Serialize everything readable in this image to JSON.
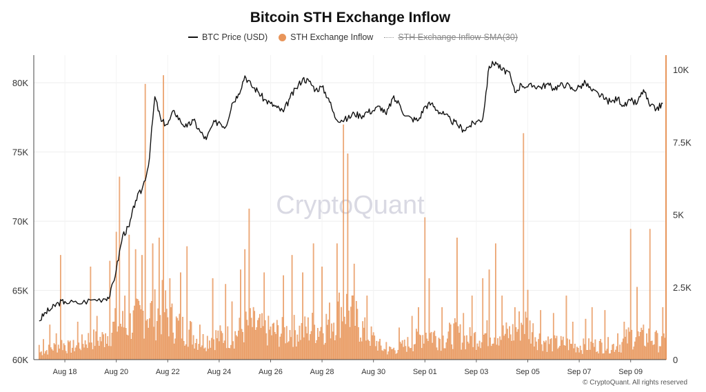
{
  "chart_data": {
    "type": "bar",
    "title": "Bitcoin STH Exchange Inflow",
    "watermark": "CryptoQuant",
    "legend_placement": "top-center",
    "legend": [
      {
        "label": "BTC Price (USD)",
        "style": "line",
        "color": "#111111"
      },
      {
        "label": "STH Exchange Inflow",
        "style": "dot",
        "color": "#e8955a"
      },
      {
        "label": "STH Exchange Inflow-SMA(30)",
        "style": "dotted",
        "disabled": true,
        "color": "#999999"
      }
    ],
    "x_tick_labels": [
      "Aug 18",
      "Aug 20",
      "Aug 22",
      "Aug 24",
      "Aug 26",
      "Aug 28",
      "Aug 30",
      "Sep 01",
      "Sep 03",
      "Sep 05",
      "Sep 07",
      "Sep 09"
    ],
    "x_range_days": [
      16.75,
      9.75
    ],
    "y_left": {
      "label": "BTC Price (USD)",
      "range": [
        60000,
        82000
      ],
      "ticks": [
        60000,
        65000,
        70000,
        75000,
        80000
      ],
      "tick_labels": [
        "60K",
        "65K",
        "70K",
        "75K",
        "80K"
      ]
    },
    "y_right": {
      "label": "STH Exchange Inflow",
      "range": [
        0,
        10500
      ],
      "ticks": [
        0,
        2500,
        5000,
        7500,
        10000
      ],
      "tick_labels": [
        "0",
        "2.5K",
        "5K",
        "7.5K",
        "10K"
      ]
    },
    "grid": true,
    "series": [
      {
        "name": "BTC Price (USD)",
        "type": "line",
        "color": "#111111",
        "points": [
          [
            "Aug 17 00:00",
            62800
          ],
          [
            "Aug 17 06:00",
            63400
          ],
          [
            "Aug 17 12:00",
            63700
          ],
          [
            "Aug 17 18:00",
            64100
          ],
          [
            "Aug 18 00:00",
            64200
          ],
          [
            "Aug 18 12:00",
            64050
          ],
          [
            "Aug 19 00:00",
            64300
          ],
          [
            "Aug 19 12:00",
            64400
          ],
          [
            "Aug 19 18:00",
            64600
          ],
          [
            "Aug 20 00:00",
            66500
          ],
          [
            "Aug 20 06:00",
            69000
          ],
          [
            "Aug 20 12:00",
            69600
          ],
          [
            "Aug 20 18:00",
            71500
          ],
          [
            "Aug 21 00:00",
            72300
          ],
          [
            "Aug 21 06:00",
            74000
          ],
          [
            "Aug 21 12:00",
            79000
          ],
          [
            "Aug 21 18:00",
            77200
          ],
          [
            "Aug 22 00:00",
            77000
          ],
          [
            "Aug 22 06:00",
            78000
          ],
          [
            "Aug 22 12:00",
            77200
          ],
          [
            "Aug 22 18:00",
            76800
          ],
          [
            "Aug 23 00:00",
            77300
          ],
          [
            "Aug 23 06:00",
            76500
          ],
          [
            "Aug 23 12:00",
            75900
          ],
          [
            "Aug 23 18:00",
            77000
          ],
          [
            "Aug 24 00:00",
            77200
          ],
          [
            "Aug 24 06:00",
            76800
          ],
          [
            "Aug 24 12:00",
            78500
          ],
          [
            "Aug 24 18:00",
            79200
          ],
          [
            "Aug 25 00:00",
            80500
          ],
          [
            "Aug 25 06:00",
            79800
          ],
          [
            "Aug 25 12:00",
            79400
          ],
          [
            "Aug 25 18:00",
            78800
          ],
          [
            "Aug 26 00:00",
            78500
          ],
          [
            "Aug 26 06:00",
            78200
          ],
          [
            "Aug 26 12:00",
            77900
          ],
          [
            "Aug 26 18:00",
            78900
          ],
          [
            "Aug 27 00:00",
            79600
          ],
          [
            "Aug 27 06:00",
            80300
          ],
          [
            "Aug 27 12:00",
            80100
          ],
          [
            "Aug 27 18:00",
            79500
          ],
          [
            "Aug 28 00:00",
            79700
          ],
          [
            "Aug 28 06:00",
            78900
          ],
          [
            "Aug 28 12:00",
            77500
          ],
          [
            "Aug 28 18:00",
            77300
          ],
          [
            "Aug 29 00:00",
            77400
          ],
          [
            "Aug 29 06:00",
            77800
          ],
          [
            "Aug 29 12:00",
            77600
          ],
          [
            "Aug 29 18:00",
            77900
          ],
          [
            "Aug 30 00:00",
            78000
          ],
          [
            "Aug 30 06:00",
            78300
          ],
          [
            "Aug 30 12:00",
            77700
          ],
          [
            "Aug 30 18:00",
            78900
          ],
          [
            "Aug 31 00:00",
            78500
          ],
          [
            "Aug 31 06:00",
            77600
          ],
          [
            "Aug 31 12:00",
            77400
          ],
          [
            "Aug 31 18:00",
            77300
          ],
          [
            "Sep 01 00:00",
            78300
          ],
          [
            "Sep 01 06:00",
            78500
          ],
          [
            "Sep 01 12:00",
            78000
          ],
          [
            "Sep 01 18:00",
            77700
          ],
          [
            "Sep 02 00:00",
            77300
          ],
          [
            "Sep 02 06:00",
            77000
          ],
          [
            "Sep 02 12:00",
            76600
          ],
          [
            "Sep 02 18:00",
            76900
          ],
          [
            "Sep 03 00:00",
            77200
          ],
          [
            "Sep 03 06:00",
            77400
          ],
          [
            "Sep 03 12:00",
            81200
          ],
          [
            "Sep 03 18:00",
            81500
          ],
          [
            "Sep 04 00:00",
            80900
          ],
          [
            "Sep 04 06:00",
            80800
          ],
          [
            "Sep 04 12:00",
            79300
          ],
          [
            "Sep 04 18:00",
            79900
          ],
          [
            "Sep 05 00:00",
            79700
          ],
          [
            "Sep 05 06:00",
            79800
          ],
          [
            "Sep 05 12:00",
            79700
          ],
          [
            "Sep 05 18:00",
            79900
          ],
          [
            "Sep 06 00:00",
            79600
          ],
          [
            "Sep 06 06:00",
            79800
          ],
          [
            "Sep 06 12:00",
            79900
          ],
          [
            "Sep 06 18:00",
            79500
          ],
          [
            "Sep 07 00:00",
            79700
          ],
          [
            "Sep 07 06:00",
            80000
          ],
          [
            "Sep 07 12:00",
            79400
          ],
          [
            "Sep 07 18:00",
            79200
          ],
          [
            "Sep 08 00:00",
            78800
          ],
          [
            "Sep 08 06:00",
            78600
          ],
          [
            "Sep 08 12:00",
            78900
          ],
          [
            "Sep 08 18:00",
            78300
          ],
          [
            "Sep 09 00:00",
            78700
          ],
          [
            "Sep 09 06:00",
            78500
          ],
          [
            "Sep 09 12:00",
            79500
          ],
          [
            "Sep 09 18:00",
            78300
          ],
          [
            "Sep 10 00:00",
            78100
          ],
          [
            "Sep 10 06:00",
            78500
          ]
        ]
      },
      {
        "name": "STH Exchange Inflow",
        "type": "bar",
        "color": "#e8955a",
        "spikes": [
          [
            "Aug 17 00:00",
            500
          ],
          [
            "Aug 17 04:00",
            700
          ],
          [
            "Aug 17 10:00",
            1200
          ],
          [
            "Aug 17 16:00",
            900
          ],
          [
            "Aug 17 20:00",
            3600
          ],
          [
            "Aug 18 04:00",
            600
          ],
          [
            "Aug 18 12:00",
            1300
          ],
          [
            "Aug 19 00:00",
            3200
          ],
          [
            "Aug 19 06:00",
            1500
          ],
          [
            "Aug 19 14:00",
            900
          ],
          [
            "Aug 19 18:00",
            3400
          ],
          [
            "Aug 20 00:00",
            4400
          ],
          [
            "Aug 20 03:00",
            6300
          ],
          [
            "Aug 20 08:00",
            2200
          ],
          [
            "Aug 20 12:00",
            4300
          ],
          [
            "Aug 20 18:00",
            3800
          ],
          [
            "Aug 21 00:00",
            3600
          ],
          [
            "Aug 21 03:00",
            9500
          ],
          [
            "Aug 21 10:00",
            4000
          ],
          [
            "Aug 21 16:00",
            4200
          ],
          [
            "Aug 21 20:00",
            9800
          ],
          [
            "Aug 22 02:00",
            2800
          ],
          [
            "Aug 22 12:00",
            3000
          ],
          [
            "Aug 22 18:00",
            3900
          ],
          [
            "Aug 23 06:00",
            1200
          ],
          [
            "Aug 23 18:00",
            2800
          ],
          [
            "Aug 24 06:00",
            2600
          ],
          [
            "Aug 24 12:00",
            2000
          ],
          [
            "Aug 24 20:00",
            3100
          ],
          [
            "Aug 25 00:00",
            3800
          ],
          [
            "Aug 25 04:00",
            5200
          ],
          [
            "Aug 25 18:00",
            3000
          ],
          [
            "Aug 26 12:00",
            2900
          ],
          [
            "Aug 26 20:00",
            3600
          ],
          [
            "Aug 27 06:00",
            3000
          ],
          [
            "Aug 27 16:00",
            4000
          ],
          [
            "Aug 28 00:00",
            3200
          ],
          [
            "Aug 28 14:00",
            4000
          ],
          [
            "Aug 28 20:00",
            8100
          ],
          [
            "Aug 29 00:00",
            7100
          ],
          [
            "Aug 29 06:00",
            3300
          ],
          [
            "Aug 29 18:00",
            2200
          ],
          [
            "Aug 30 12:00",
            600
          ],
          [
            "Aug 31 00:00",
            1100
          ],
          [
            "Aug 31 12:00",
            1500
          ],
          [
            "Aug 31 18:00",
            1800
          ],
          [
            "Sep 01 00:00",
            4900
          ],
          [
            "Sep 01 04:00",
            2800
          ],
          [
            "Sep 01 16:00",
            1800
          ],
          [
            "Sep 02 06:00",
            4200
          ],
          [
            "Sep 02 12:00",
            1600
          ],
          [
            "Sep 02 20:00",
            2200
          ],
          [
            "Sep 03 06:00",
            2800
          ],
          [
            "Sep 03 12:00",
            3100
          ],
          [
            "Sep 03 18:00",
            4000
          ],
          [
            "Sep 04 00:00",
            2200
          ],
          [
            "Sep 04 12:00",
            1800
          ],
          [
            "Sep 04 20:00",
            7800
          ],
          [
            "Sep 05 00:00",
            2400
          ],
          [
            "Sep 05 12:00",
            1700
          ],
          [
            "Sep 06 00:00",
            1600
          ],
          [
            "Sep 06 12:00",
            2200
          ],
          [
            "Sep 06 18:00",
            1300
          ],
          [
            "Sep 07 06:00",
            1400
          ],
          [
            "Sep 07 12:00",
            1800
          ],
          [
            "Sep 08 00:00",
            1700
          ],
          [
            "Sep 08 12:00",
            900
          ],
          [
            "Sep 08 18:00",
            1300
          ],
          [
            "Sep 09 00:00",
            4500
          ],
          [
            "Sep 09 06:00",
            2500
          ],
          [
            "Sep 09 12:00",
            1200
          ],
          [
            "Sep 09 18:00",
            4500
          ],
          [
            "Sep 10 00:00",
            1000
          ],
          [
            "Sep 10 06:00",
            1800
          ]
        ]
      }
    ]
  },
  "footer": "© CryptoQuant. All rights reserved"
}
